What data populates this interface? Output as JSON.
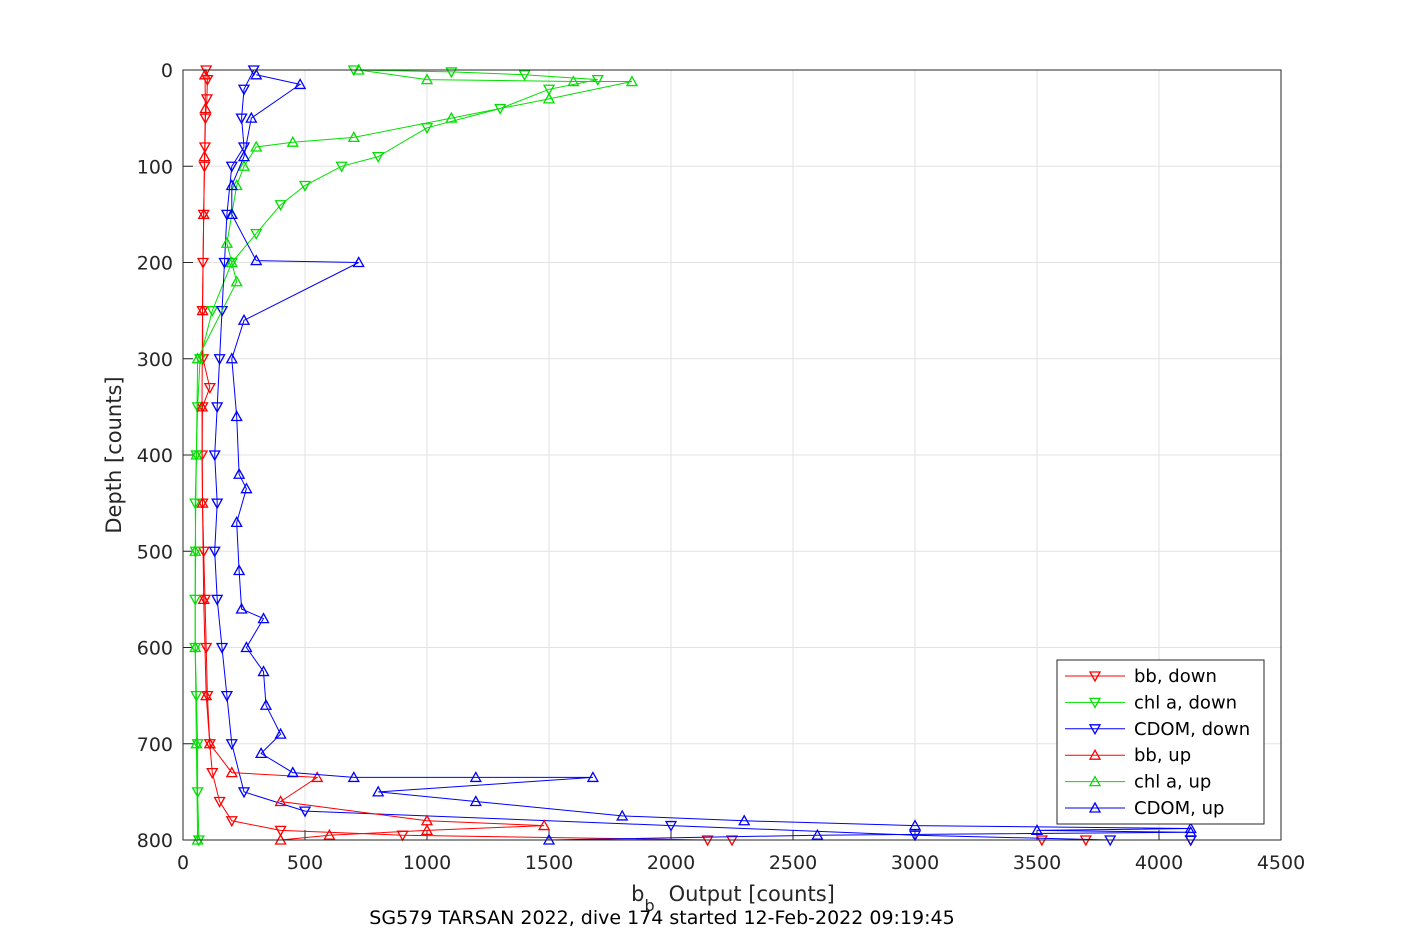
{
  "chart_data": {
    "type": "scatter",
    "title": "",
    "xlabel_main": "b",
    "xlabel_sub": "b",
    "xlabel_rest": "Output [counts]",
    "ylabel": "Depth [counts]",
    "caption": "SG579 TARSAN 2022, dive 174 started 12-Feb-2022 09:19:45",
    "xlim": [
      0,
      4500
    ],
    "ylim": [
      800,
      0
    ],
    "y_reversed": true,
    "grid": true,
    "legend_position": "bottom-right",
    "xticks": [
      "0",
      "500",
      "1000",
      "1500",
      "2000",
      "2500",
      "3000",
      "3500",
      "4000",
      "4500"
    ],
    "yticks": [
      "0",
      "100",
      "200",
      "300",
      "400",
      "500",
      "600",
      "700",
      "800"
    ],
    "series": [
      {
        "name": "bb, down",
        "color": "#ff0000",
        "marker": "triangle-down",
        "points": [
          [
            95,
            0
          ],
          [
            100,
            10
          ],
          [
            98,
            30
          ],
          [
            92,
            50
          ],
          [
            90,
            80
          ],
          [
            88,
            100
          ],
          [
            85,
            150
          ],
          [
            82,
            200
          ],
          [
            80,
            250
          ],
          [
            82,
            300
          ],
          [
            110,
            330
          ],
          [
            80,
            350
          ],
          [
            78,
            400
          ],
          [
            80,
            450
          ],
          [
            85,
            500
          ],
          [
            90,
            550
          ],
          [
            95,
            600
          ],
          [
            100,
            650
          ],
          [
            110,
            700
          ],
          [
            120,
            730
          ],
          [
            150,
            760
          ],
          [
            200,
            780
          ],
          [
            400,
            790
          ],
          [
            900,
            795
          ],
          [
            2150,
            800
          ],
          [
            2250,
            800
          ],
          [
            3520,
            800
          ],
          [
            3700,
            800
          ],
          [
            4130,
            800
          ]
        ]
      },
      {
        "name": "chl a, down",
        "color": "#00e000",
        "marker": "triangle-down",
        "points": [
          [
            700,
            0
          ],
          [
            1100,
            2
          ],
          [
            1400,
            5
          ],
          [
            1700,
            10
          ],
          [
            1500,
            20
          ],
          [
            1300,
            40
          ],
          [
            1000,
            60
          ],
          [
            800,
            90
          ],
          [
            650,
            100
          ],
          [
            500,
            120
          ],
          [
            400,
            140
          ],
          [
            300,
            170
          ],
          [
            200,
            200
          ],
          [
            120,
            250
          ],
          [
            70,
            300
          ],
          [
            60,
            350
          ],
          [
            55,
            400
          ],
          [
            50,
            450
          ],
          [
            52,
            500
          ],
          [
            50,
            550
          ],
          [
            50,
            600
          ],
          [
            55,
            650
          ],
          [
            60,
            700
          ],
          [
            60,
            750
          ],
          [
            65,
            800
          ]
        ]
      },
      {
        "name": "CDOM, down",
        "color": "#0000ff",
        "marker": "triangle-down",
        "points": [
          [
            290,
            0
          ],
          [
            250,
            20
          ],
          [
            240,
            50
          ],
          [
            250,
            80
          ],
          [
            200,
            100
          ],
          [
            180,
            150
          ],
          [
            170,
            200
          ],
          [
            160,
            250
          ],
          [
            150,
            300
          ],
          [
            140,
            350
          ],
          [
            130,
            400
          ],
          [
            140,
            450
          ],
          [
            130,
            500
          ],
          [
            140,
            550
          ],
          [
            160,
            600
          ],
          [
            180,
            650
          ],
          [
            200,
            700
          ],
          [
            250,
            750
          ],
          [
            500,
            770
          ],
          [
            2000,
            785
          ],
          [
            3000,
            795
          ],
          [
            3800,
            800
          ],
          [
            4130,
            800
          ]
        ]
      },
      {
        "name": "bb, up",
        "color": "#ff0000",
        "marker": "triangle-up",
        "points": [
          [
            90,
            5
          ],
          [
            92,
            40
          ],
          [
            88,
            90
          ],
          [
            85,
            150
          ],
          [
            80,
            250
          ],
          [
            78,
            350
          ],
          [
            80,
            450
          ],
          [
            85,
            550
          ],
          [
            95,
            650
          ],
          [
            110,
            700
          ],
          [
            200,
            730
          ],
          [
            550,
            735
          ],
          [
            400,
            760
          ],
          [
            1000,
            780
          ],
          [
            1480,
            785
          ],
          [
            1000,
            790
          ],
          [
            600,
            795
          ],
          [
            400,
            800
          ]
        ]
      },
      {
        "name": "chl a, up",
        "color": "#00e000",
        "marker": "triangle-up",
        "points": [
          [
            720,
            0
          ],
          [
            1000,
            10
          ],
          [
            1600,
            12
          ],
          [
            1840,
            12
          ],
          [
            1500,
            30
          ],
          [
            1100,
            50
          ],
          [
            700,
            70
          ],
          [
            450,
            75
          ],
          [
            300,
            80
          ],
          [
            250,
            100
          ],
          [
            220,
            120
          ],
          [
            200,
            150
          ],
          [
            180,
            180
          ],
          [
            200,
            200
          ],
          [
            220,
            220
          ],
          [
            60,
            300
          ],
          [
            55,
            400
          ],
          [
            50,
            500
          ],
          [
            50,
            600
          ],
          [
            55,
            700
          ],
          [
            60,
            800
          ]
        ]
      },
      {
        "name": "CDOM, up",
        "color": "#0000ff",
        "marker": "triangle-up",
        "points": [
          [
            300,
            5
          ],
          [
            480,
            15
          ],
          [
            280,
            50
          ],
          [
            250,
            90
          ],
          [
            200,
            120
          ],
          [
            200,
            150
          ],
          [
            300,
            198
          ],
          [
            720,
            200
          ],
          [
            250,
            260
          ],
          [
            200,
            300
          ],
          [
            220,
            360
          ],
          [
            230,
            420
          ],
          [
            260,
            435
          ],
          [
            220,
            470
          ],
          [
            230,
            520
          ],
          [
            240,
            560
          ],
          [
            330,
            570
          ],
          [
            260,
            600
          ],
          [
            330,
            625
          ],
          [
            340,
            660
          ],
          [
            400,
            690
          ],
          [
            320,
            710
          ],
          [
            450,
            730
          ],
          [
            700,
            735
          ],
          [
            1200,
            735
          ],
          [
            1680,
            735
          ],
          [
            800,
            750
          ],
          [
            1200,
            760
          ],
          [
            1800,
            775
          ],
          [
            2300,
            780
          ],
          [
            3000,
            785
          ],
          [
            4130,
            788
          ],
          [
            3500,
            790
          ],
          [
            4130,
            792
          ],
          [
            2600,
            795
          ],
          [
            1500,
            800
          ]
        ]
      }
    ]
  }
}
